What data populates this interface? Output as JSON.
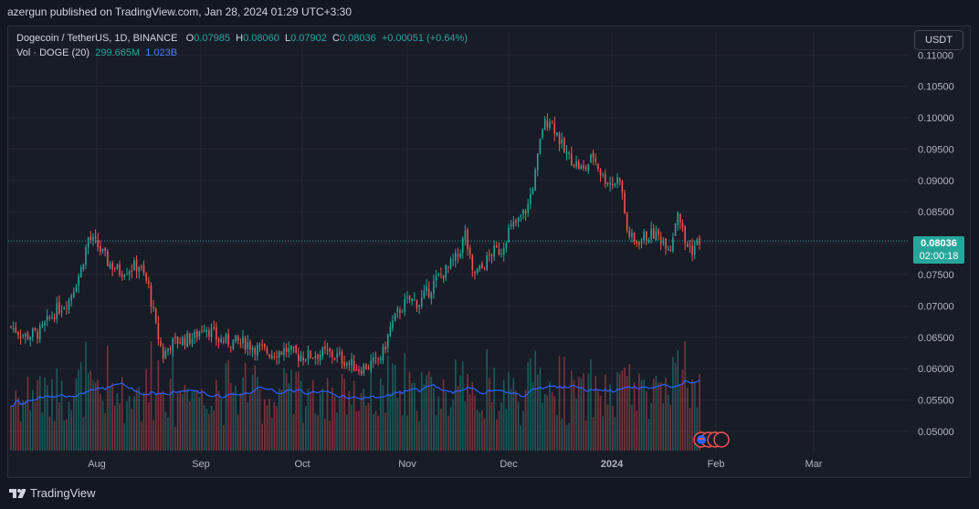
{
  "header": {
    "published": "azergun published on TradingView.com, Jan 28, 2024 01:29 UTC+3:30"
  },
  "legend": {
    "symbol": "Dogecoin / TetherUS, 1D, BINANCE",
    "o_label": "O",
    "o": "0.07985",
    "h_label": "H",
    "h": "0.08060",
    "l_label": "L",
    "l": "0.07902",
    "c_label": "C",
    "c": "0.08036",
    "change": "+0.00051 (+0.64%)",
    "vol_label": "Vol · DOGE (20)",
    "vol": "299.665M",
    "vol_ma": "1.023B"
  },
  "currency_button": "USDT",
  "price_tag": {
    "price": "0.08036",
    "countdown": "02:00:18"
  },
  "brand": "TradingView",
  "colors": {
    "up": "#26a69a",
    "down": "#ef5350",
    "ma": "#2962ff",
    "background": "#181c27"
  },
  "chart_data": {
    "type": "candlestick",
    "symbol": "DOGEUSDT",
    "interval": "1D",
    "x_tick_labels": [
      "Aug",
      "Sep",
      "Oct",
      "Nov",
      "Dec",
      "2024",
      "Feb",
      "Mar"
    ],
    "y_tick_labels": [
      "0.11000",
      "0.10500",
      "0.10000",
      "0.09500",
      "0.09000",
      "0.08500",
      "0.08000",
      "0.07500",
      "0.07000",
      "0.06500",
      "0.06000",
      "0.05500",
      "0.05000"
    ],
    "ylim": [
      0.0465,
      0.1115
    ],
    "last_price": 0.08036,
    "series": [
      {
        "name": "DOGEUSDT",
        "anchors": [
          [
            0,
            0.0667
          ],
          [
            6,
            0.0652
          ],
          [
            12,
            0.0658
          ],
          [
            18,
            0.069
          ],
          [
            24,
            0.071
          ],
          [
            29,
            0.0758
          ],
          [
            32,
            0.0808
          ],
          [
            36,
            0.0795
          ],
          [
            40,
            0.077
          ],
          [
            45,
            0.0755
          ],
          [
            49,
            0.076
          ],
          [
            53,
            0.0765
          ],
          [
            57,
            0.073
          ],
          [
            60,
            0.0665
          ],
          [
            63,
            0.062
          ],
          [
            66,
            0.064
          ],
          [
            70,
            0.0645
          ],
          [
            76,
            0.065
          ],
          [
            80,
            0.067
          ],
          [
            86,
            0.0645
          ],
          [
            92,
            0.0643
          ],
          [
            98,
            0.064
          ],
          [
            103,
            0.063
          ],
          [
            108,
            0.0625
          ],
          [
            114,
            0.063
          ],
          [
            119,
            0.062
          ],
          [
            124,
            0.0622
          ],
          [
            130,
            0.0625
          ],
          [
            135,
            0.062
          ],
          [
            140,
            0.0608
          ],
          [
            144,
            0.06
          ],
          [
            148,
            0.0605
          ],
          [
            151,
            0.061
          ],
          [
            154,
            0.0625
          ],
          [
            157,
            0.0665
          ],
          [
            161,
            0.0695
          ],
          [
            165,
            0.071
          ],
          [
            169,
            0.0705
          ],
          [
            173,
            0.0725
          ],
          [
            177,
            0.0745
          ],
          [
            181,
            0.076
          ],
          [
            185,
            0.078
          ],
          [
            188,
            0.0815
          ],
          [
            191,
            0.075
          ],
          [
            195,
            0.076
          ],
          [
            199,
            0.0785
          ],
          [
            203,
            0.079
          ],
          [
            206,
            0.082
          ],
          [
            210,
            0.0835
          ],
          [
            214,
            0.086
          ],
          [
            217,
            0.091
          ],
          [
            220,
            0.0985
          ],
          [
            223,
            0.1
          ],
          [
            226,
            0.0975
          ],
          [
            229,
            0.0945
          ],
          [
            233,
            0.093
          ],
          [
            237,
            0.0915
          ],
          [
            241,
            0.094
          ],
          [
            245,
            0.0905
          ],
          [
            249,
            0.0895
          ],
          [
            252,
            0.0905
          ],
          [
            255,
            0.082
          ],
          [
            258,
            0.08
          ],
          [
            262,
            0.081
          ],
          [
            266,
            0.0815
          ],
          [
            270,
            0.0805
          ],
          [
            273,
            0.0795
          ],
          [
            276,
            0.0855
          ],
          [
            279,
            0.08
          ],
          [
            282,
            0.079
          ],
          [
            285,
            0.0805
          ]
        ]
      },
      {
        "name": "Vol · DOGE (20)",
        "note": "volume histogram with 20-period moving average"
      }
    ]
  }
}
